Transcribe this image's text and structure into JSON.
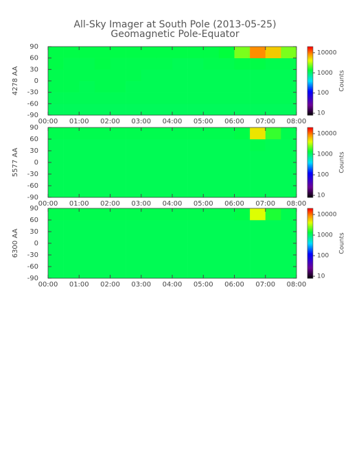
{
  "chart_data": [
    {
      "type": "heatmap",
      "title": "All-Sky Imager at South Pole (2013-05-25)",
      "subtitle": "Geomagnetic Pole-Equator",
      "ylabel": "4278 AA",
      "colorbar_label": "Counts",
      "xlim": [
        0,
        8
      ],
      "xticks": [
        {
          "value": 0,
          "label": "00:00"
        },
        {
          "value": 1,
          "label": "01:00"
        },
        {
          "value": 2,
          "label": "02:00"
        },
        {
          "value": 3,
          "label": "03:00"
        },
        {
          "value": 4,
          "label": "04:00"
        },
        {
          "value": 5,
          "label": "05:00"
        },
        {
          "value": 6,
          "label": "06:00"
        },
        {
          "value": 7,
          "label": "07:00"
        },
        {
          "value": 8,
          "label": "08:00"
        }
      ],
      "ylim": [
        -90,
        90
      ],
      "yticks": [
        -90,
        -60,
        -30,
        0,
        30,
        60,
        90
      ],
      "xbins": [
        0,
        0.5,
        1,
        1.5,
        2,
        2.5,
        3,
        3.5,
        4,
        4.5,
        5,
        5.5,
        6,
        6.5,
        7,
        7.5,
        8
      ],
      "ybins": [
        -90,
        -60,
        -30,
        0,
        30,
        60,
        90
      ],
      "clim": [
        8,
        20000
      ],
      "cticks": [
        10,
        100,
        1000,
        10000
      ],
      "log_color": true,
      "values": [
        [
          1150,
          1150,
          1150,
          1150,
          1150,
          1150,
          1150,
          1150,
          1150,
          1150,
          1150,
          1150,
          1150,
          1150,
          1150,
          1150
        ],
        [
          1200,
          1200,
          1200,
          1200,
          1200,
          1200,
          1200,
          1200,
          1200,
          1200,
          1200,
          1200,
          1200,
          1200,
          1200,
          1200
        ],
        [
          1250,
          1250,
          1200,
          1250,
          1250,
          1200,
          1200,
          1200,
          1200,
          1200,
          1200,
          1200,
          1200,
          1200,
          1200,
          1200
        ],
        [
          1250,
          1250,
          1250,
          1250,
          1250,
          1250,
          1200,
          1200,
          1200,
          1200,
          1200,
          1200,
          1200,
          1200,
          1200,
          1200
        ],
        [
          1300,
          1250,
          1250,
          1300,
          1250,
          1250,
          1250,
          1250,
          1200,
          1200,
          1250,
          1250,
          1300,
          1300,
          1250,
          1250
        ],
        [
          1300,
          1300,
          1300,
          1300,
          1300,
          1300,
          1300,
          1300,
          1300,
          1300,
          1300,
          1400,
          2500,
          9000,
          6000,
          2500
        ]
      ]
    },
    {
      "type": "heatmap",
      "ylabel": "5577 AA",
      "colorbar_label": "Counts",
      "xlim": [
        0,
        8
      ],
      "xticks": [
        {
          "value": 0,
          "label": "00:00"
        },
        {
          "value": 1,
          "label": "01:00"
        },
        {
          "value": 2,
          "label": "02:00"
        },
        {
          "value": 3,
          "label": "03:00"
        },
        {
          "value": 4,
          "label": "04:00"
        },
        {
          "value": 5,
          "label": "05:00"
        },
        {
          "value": 6,
          "label": "06:00"
        },
        {
          "value": 7,
          "label": "07:00"
        },
        {
          "value": 8,
          "label": "08:00"
        }
      ],
      "ylim": [
        -90,
        90
      ],
      "yticks": [
        -90,
        -60,
        -30,
        0,
        30,
        60,
        90
      ],
      "xbins": [
        0,
        0.5,
        1,
        1.5,
        2,
        2.5,
        3,
        3.5,
        4,
        4.5,
        5,
        5.5,
        6,
        6.5,
        7,
        7.5,
        8
      ],
      "ybins": [
        -90,
        -60,
        -30,
        0,
        30,
        60,
        90
      ],
      "clim": [
        8,
        20000
      ],
      "cticks": [
        10,
        100,
        1000,
        10000
      ],
      "log_color": true,
      "values": [
        [
          1200,
          1200,
          1200,
          1200,
          1200,
          1200,
          1200,
          1200,
          1200,
          1200,
          1200,
          1200,
          1200,
          1200,
          1200,
          1200
        ],
        [
          1200,
          1200,
          1200,
          1200,
          1200,
          1200,
          1200,
          1200,
          1200,
          1200,
          1200,
          1200,
          1200,
          1200,
          1200,
          1200
        ],
        [
          1200,
          1200,
          1200,
          1200,
          1200,
          1200,
          1200,
          1200,
          1200,
          1200,
          1200,
          1200,
          1200,
          1200,
          1200,
          1200
        ],
        [
          1200,
          1200,
          1200,
          1200,
          1200,
          1200,
          1200,
          1200,
          1200,
          1200,
          1200,
          1200,
          1200,
          1200,
          1200,
          1200
        ],
        [
          1200,
          1200,
          1200,
          1200,
          1200,
          1200,
          1200,
          1200,
          1200,
          1200,
          1200,
          1200,
          1200,
          1250,
          1200,
          1200
        ],
        [
          1250,
          1250,
          1250,
          1250,
          1250,
          1250,
          1250,
          1250,
          1250,
          1250,
          1250,
          1250,
          1300,
          5000,
          1800,
          1250
        ]
      ]
    },
    {
      "type": "heatmap",
      "ylabel": "6300 AA",
      "colorbar_label": "Counts",
      "xlim": [
        0,
        8
      ],
      "xticks": [
        {
          "value": 0,
          "label": "00:00"
        },
        {
          "value": 1,
          "label": "01:00"
        },
        {
          "value": 2,
          "label": "02:00"
        },
        {
          "value": 3,
          "label": "03:00"
        },
        {
          "value": 4,
          "label": "04:00"
        },
        {
          "value": 5,
          "label": "05:00"
        },
        {
          "value": 6,
          "label": "06:00"
        },
        {
          "value": 7,
          "label": "07:00"
        },
        {
          "value": 8,
          "label": "08:00"
        }
      ],
      "ylim": [
        -90,
        90
      ],
      "yticks": [
        -90,
        -60,
        -30,
        0,
        30,
        60,
        90
      ],
      "xbins": [
        0,
        0.5,
        1,
        1.5,
        2,
        2.5,
        3,
        3.5,
        4,
        4.5,
        5,
        5.5,
        6,
        6.5,
        7,
        7.5,
        8
      ],
      "ybins": [
        -90,
        -60,
        -30,
        0,
        30,
        60,
        90
      ],
      "clim": [
        8,
        20000
      ],
      "cticks": [
        10,
        100,
        1000,
        10000
      ],
      "log_color": true,
      "values": [
        [
          1200,
          1200,
          1200,
          1200,
          1200,
          1200,
          1200,
          1200,
          1200,
          1200,
          1200,
          1200,
          1200,
          1200,
          1200,
          1200
        ],
        [
          1200,
          1200,
          1200,
          1200,
          1200,
          1200,
          1200,
          1200,
          1200,
          1200,
          1200,
          1200,
          1200,
          1200,
          1200,
          1200
        ],
        [
          1200,
          1200,
          1200,
          1200,
          1200,
          1200,
          1200,
          1200,
          1200,
          1200,
          1200,
          1200,
          1200,
          1200,
          1200,
          1200
        ],
        [
          1200,
          1200,
          1200,
          1200,
          1200,
          1200,
          1200,
          1200,
          1200,
          1200,
          1200,
          1200,
          1200,
          1200,
          1200,
          1200
        ],
        [
          1200,
          1200,
          1200,
          1200,
          1200,
          1200,
          1200,
          1200,
          1200,
          1200,
          1200,
          1200,
          1200,
          1200,
          1200,
          1200
        ],
        [
          1250,
          1250,
          1250,
          1250,
          1250,
          1250,
          1250,
          1250,
          1250,
          1250,
          1250,
          1250,
          1300,
          4000,
          1600,
          1250
        ]
      ]
    }
  ]
}
